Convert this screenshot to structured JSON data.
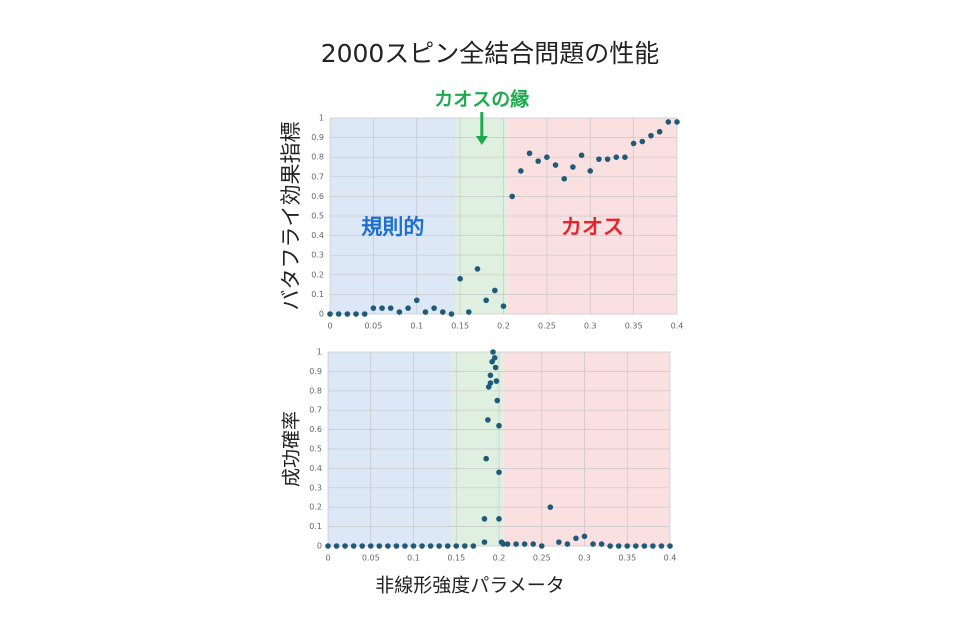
{
  "chart_data": [
    {
      "type": "scatter",
      "title": "2000スピン全結合問題の性能",
      "ylabel": "バタフライ効果指標",
      "annotation": "カオスの縁",
      "annotation_color": "#1faa4f",
      "color": "#1f5a78",
      "x": [
        0,
        0.01,
        0.02,
        0.03,
        0.04,
        0.05,
        0.06,
        0.07,
        0.08,
        0.09,
        0.1,
        0.11,
        0.12,
        0.13,
        0.14,
        0.15,
        0.16,
        0.17,
        0.18,
        0.19,
        0.2,
        0.21,
        0.22,
        0.23,
        0.24,
        0.25,
        0.26,
        0.27,
        0.28,
        0.29,
        0.3,
        0.31,
        0.32,
        0.33,
        0.34,
        0.35,
        0.36,
        0.37,
        0.38,
        0.39,
        0.4
      ],
      "values": [
        0,
        0,
        0,
        0,
        0,
        0.03,
        0.03,
        0.03,
        0.01,
        0.03,
        0.07,
        0.01,
        0.03,
        0.01,
        0,
        0.18,
        0.01,
        0.23,
        0.07,
        0.12,
        0.04,
        0.6,
        0.73,
        0.82,
        0.78,
        0.8,
        0.76,
        0.69,
        0.75,
        0.81,
        0.73,
        0.79,
        0.79,
        0.8,
        0.8,
        0.87,
        0.88,
        0.91,
        0.93,
        0.98,
        0.98
      ],
      "xlim": [
        0,
        0.4
      ],
      "ylim": [
        0,
        1
      ],
      "xticks": [
        0,
        0.05,
        0.1,
        0.15,
        0.2,
        0.25,
        0.3,
        0.35,
        0.4
      ],
      "yticks": [
        0,
        0.1,
        0.2,
        0.3,
        0.4,
        0.5,
        0.6,
        0.7,
        0.8,
        0.9,
        1
      ],
      "grid": true,
      "regions": [
        {
          "label": "規則的",
          "label_color": "#1f6fd1",
          "color": "#dde8f6",
          "xrange": [
            0,
            0.145
          ]
        },
        {
          "color": "#dff0e0",
          "xrange": [
            0.145,
            0.205
          ]
        },
        {
          "label": "カオス",
          "label_color": "#e8232b",
          "color": "#fbe0e2",
          "xrange": [
            0.205,
            0.4
          ]
        }
      ]
    },
    {
      "type": "scatter",
      "ylabel": "成功確率",
      "xlabel": "非線形強度パラメータ",
      "color": "#1f5a78",
      "x": [
        0,
        0.01,
        0.02,
        0.03,
        0.04,
        0.05,
        0.06,
        0.07,
        0.08,
        0.09,
        0.1,
        0.11,
        0.12,
        0.13,
        0.14,
        0.15,
        0.16,
        0.17,
        0.183,
        0.183,
        0.185,
        0.187,
        0.188,
        0.19,
        0.19,
        0.192,
        0.193,
        0.195,
        0.196,
        0.197,
        0.198,
        0.2,
        0.2,
        0.2,
        0.203,
        0.205,
        0.21,
        0.22,
        0.23,
        0.24,
        0.25,
        0.26,
        0.27,
        0.28,
        0.29,
        0.3,
        0.31,
        0.32,
        0.33,
        0.34,
        0.35,
        0.36,
        0.37,
        0.38,
        0.39,
        0.4
      ],
      "values": [
        0,
        0,
        0,
        0,
        0,
        0,
        0,
        0,
        0,
        0,
        0,
        0,
        0,
        0,
        0,
        0,
        0,
        0,
        0.02,
        0.14,
        0.45,
        0.65,
        0.82,
        0.84,
        0.88,
        0.95,
        1,
        0.97,
        0.92,
        0.85,
        0.75,
        0.62,
        0.38,
        0.14,
        0.02,
        0.01,
        0.01,
        0.01,
        0.01,
        0.01,
        0,
        0.2,
        0.02,
        0.01,
        0.04,
        0.05,
        0.01,
        0.01,
        0,
        0,
        0,
        0,
        0,
        0,
        0,
        0
      ],
      "xlim": [
        0,
        0.4
      ],
      "ylim": [
        0,
        1
      ],
      "xticks": [
        0,
        0.05,
        0.1,
        0.15,
        0.2,
        0.25,
        0.3,
        0.35,
        0.4
      ],
      "yticks": [
        0,
        0.1,
        0.2,
        0.3,
        0.4,
        0.5,
        0.6,
        0.7,
        0.8,
        0.9,
        1
      ],
      "grid": true,
      "regions": [
        {
          "color": "#dde8f6",
          "xrange": [
            0,
            0.145
          ]
        },
        {
          "color": "#dff0e0",
          "xrange": [
            0.145,
            0.205
          ]
        },
        {
          "color": "#fbe0e2",
          "xrange": [
            0.205,
            0.4
          ]
        }
      ]
    }
  ]
}
